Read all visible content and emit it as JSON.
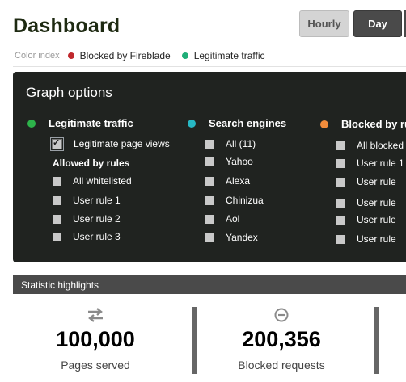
{
  "header": {
    "title": "Dashboard",
    "hourly_label": "Hourly",
    "day_label": "Day"
  },
  "legend": {
    "label": "Color index",
    "items": [
      {
        "label": "Blocked by Fireblade",
        "color": "#c0282d"
      },
      {
        "label": "Legitimate traffic",
        "color": "#1fae78"
      }
    ]
  },
  "graph_options": {
    "title": "Graph options",
    "col1": {
      "head": "Legitimate traffic",
      "color": "#2db34a",
      "first": {
        "label": "Legitimate page views",
        "checked": true
      },
      "sub_head": "Allowed by rules",
      "items": [
        "All whitelisted",
        "User rule 1",
        "User rule 2",
        "User rule 3"
      ]
    },
    "col2": {
      "head": "Search engines",
      "color": "#27b8c4",
      "items": [
        "All (11)",
        "Yahoo",
        "Alexa",
        "Chinizua",
        "Aol",
        "Yandex"
      ]
    },
    "col3": {
      "head": "Blocked by ru",
      "color": "#f28c3b",
      "items": [
        "All blocked",
        "User rule 1",
        "User rule",
        "User rule",
        "User rule",
        "User rule"
      ]
    }
  },
  "statistics": {
    "title": "Statistic highlights",
    "cards": [
      {
        "icon": "transfer-arrows-icon",
        "value": "100,000",
        "caption": "Pages served"
      },
      {
        "icon": "minus-circle-icon",
        "value": "200,356",
        "caption": "Blocked requests"
      }
    ]
  }
}
